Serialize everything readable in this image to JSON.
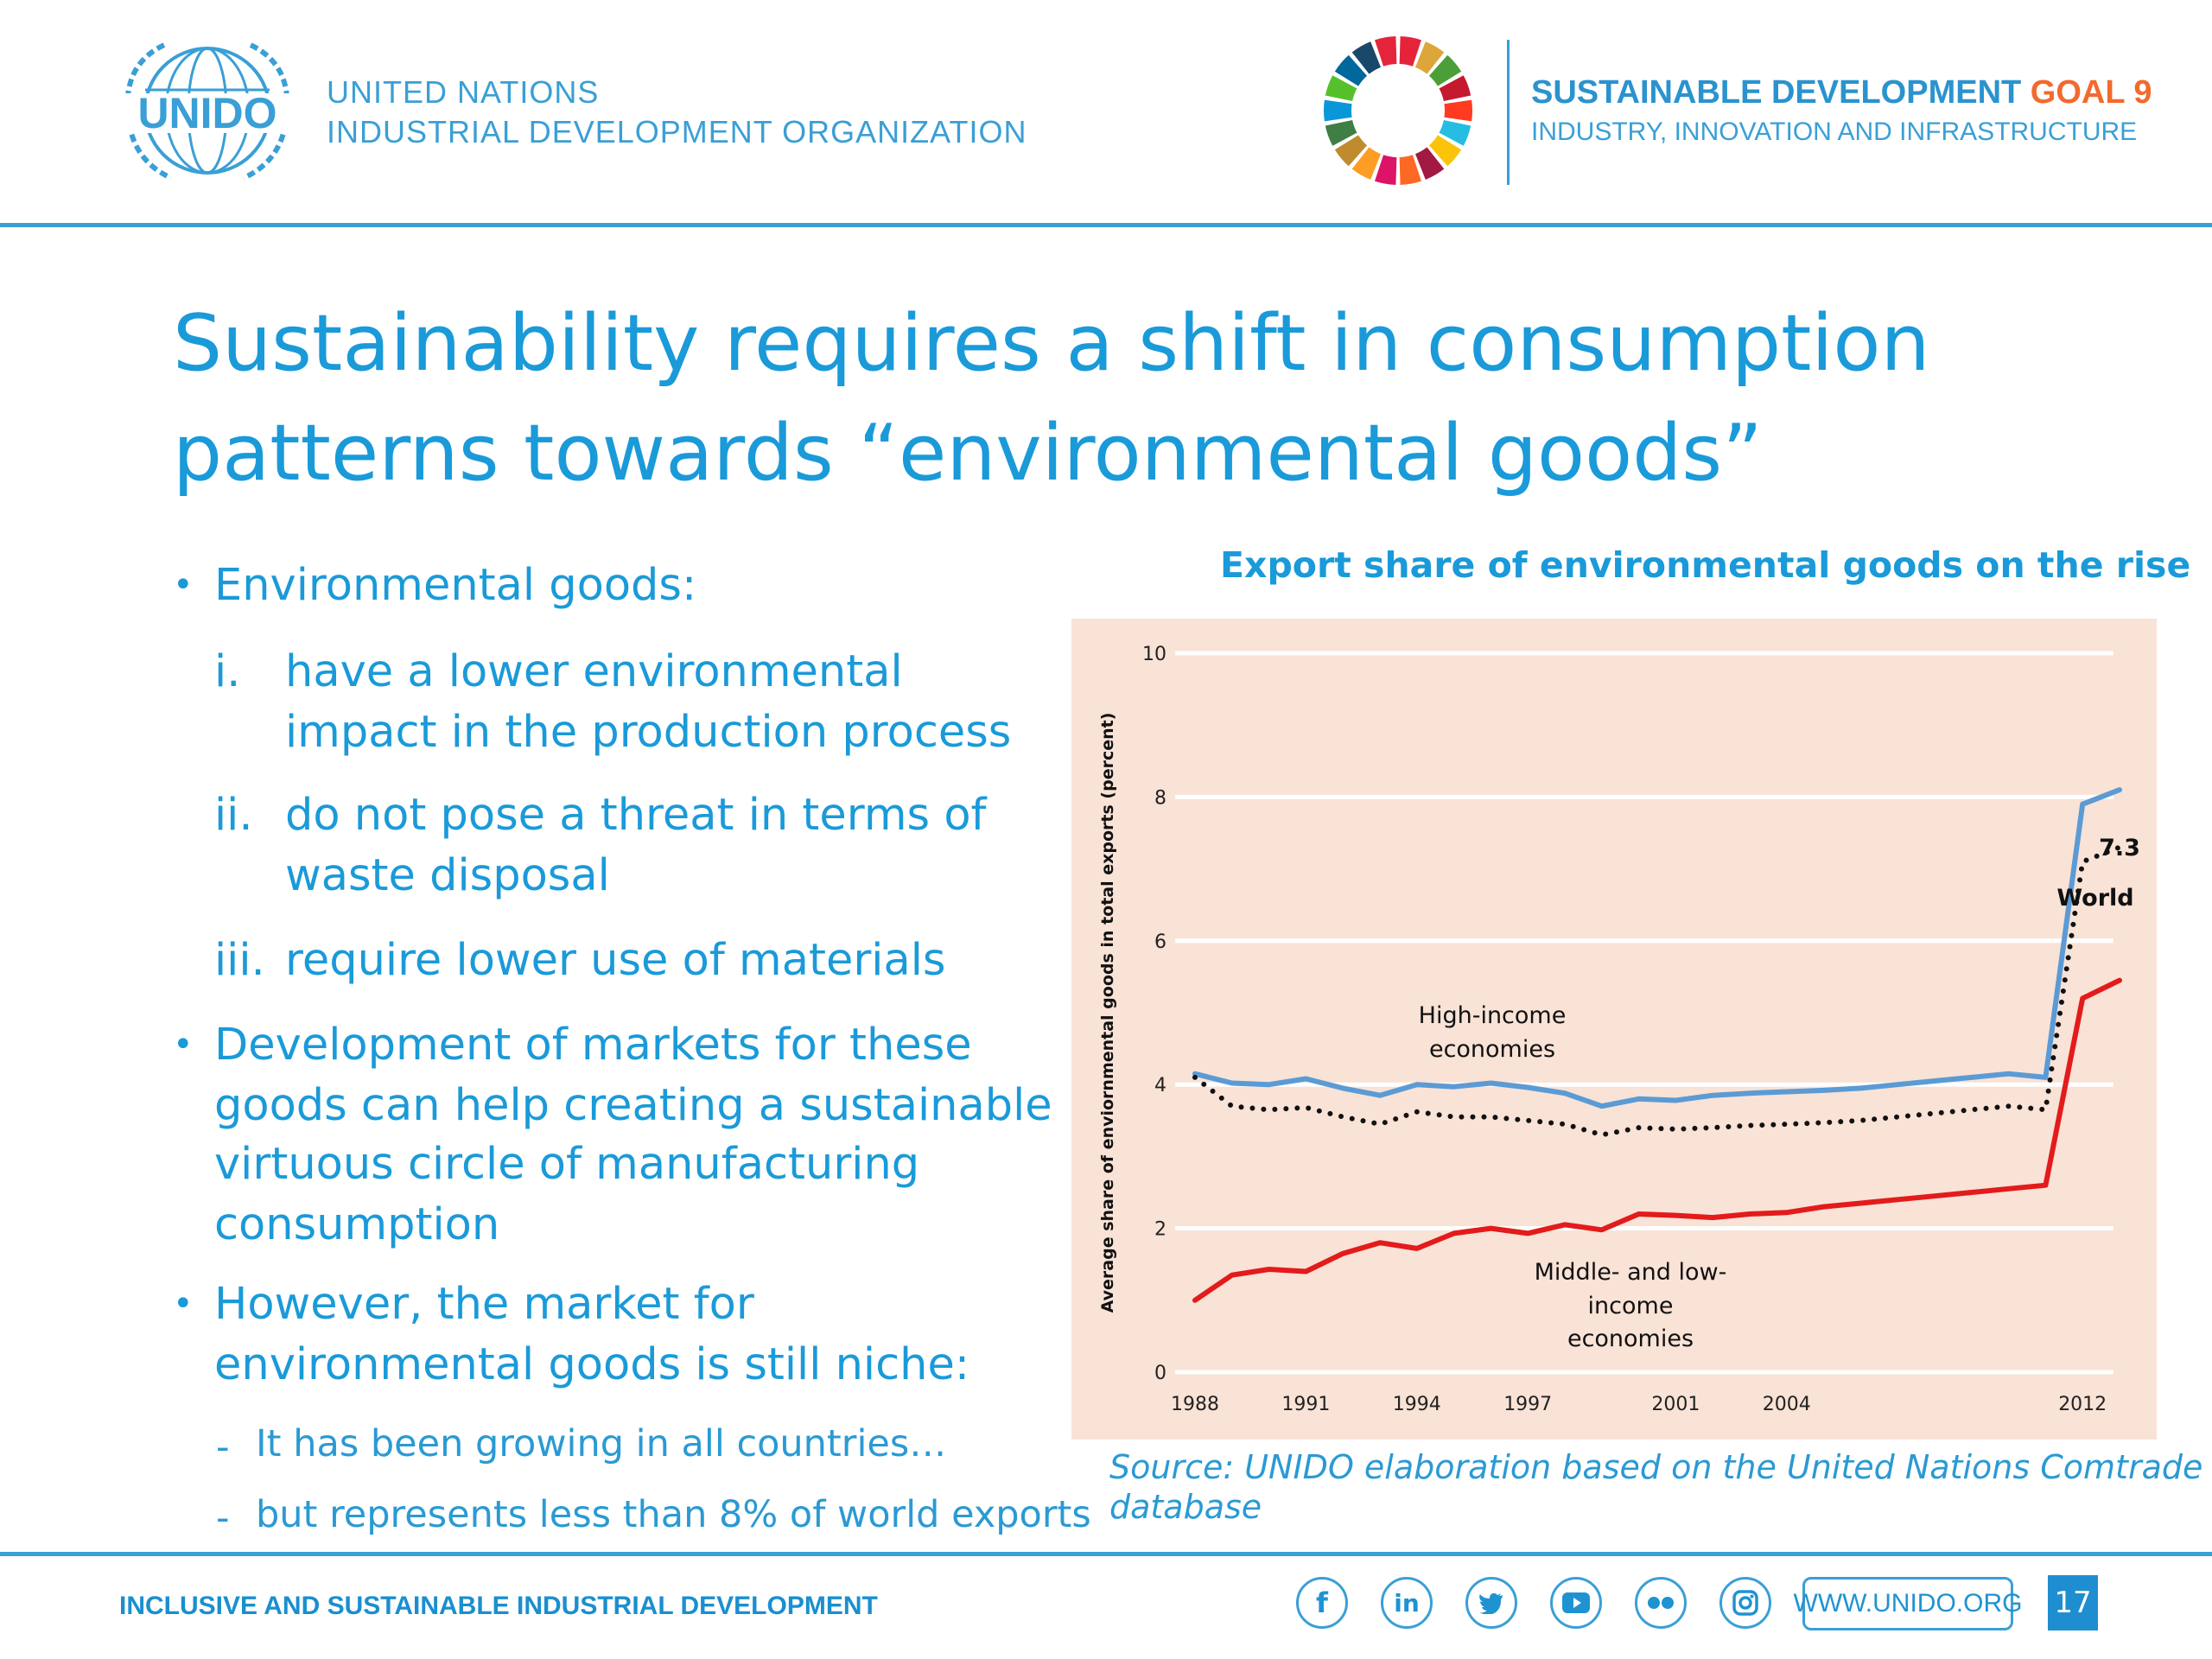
{
  "header": {
    "org_line1": "UNITED NATIONS",
    "org_line2": "INDUSTRIAL DEVELOPMENT ORGANIZATION",
    "emblem_text": "UNIDO",
    "sdg_title_part1": "SUSTAINABLE DEVELOPMENT ",
    "sdg_title_part2": "GOAL 9",
    "sdg_subtitle": "INDUSTRY, INNOVATION AND INFRASTRUCTURE",
    "wheel_colors": [
      "#e5243b",
      "#dda63a",
      "#4c9f38",
      "#c5192d",
      "#ff3a21",
      "#26bde2",
      "#fcc30b",
      "#a21942",
      "#fd6925",
      "#dd1367",
      "#fd9d24",
      "#bf8b2e",
      "#3f7e44",
      "#0a97d9",
      "#56c02b",
      "#00689d",
      "#19486a",
      "#e5243b"
    ]
  },
  "slide": {
    "title_line1": "Sustainability requires a shift in consumption",
    "title_line2": "patterns towards “environmental goods”",
    "bullets": {
      "b1": "Environmental goods:",
      "i_marker": "i.",
      "i_line1": "have a lower environmental",
      "i_line2": "impact in the production process",
      "ii_marker": "ii.",
      "ii_line1": "do not pose a threat in terms of",
      "ii_line2": "waste disposal",
      "iii_marker": "iii.",
      "iii_line1": "require lower use of materials",
      "b2_line1": "Development of markets for these",
      "b2_line2": "goods can help creating a sustainable",
      "b2_line3": "virtuous circle of manufacturing",
      "b2_line4": "consumption",
      "b3_line1": "However, the market for",
      "b3_line2": "environmental goods is still niche:",
      "s1": "It has been growing in all countries…",
      "s2": "but represents less than 8% of world exports",
      "bullet_char": "•",
      "dash_char": "-"
    }
  },
  "chart_data": {
    "type": "line",
    "title": "Export share of environmental goods on the rise",
    "ylabel": "Average share of enviornmental goods in total exports (percent)",
    "xlabel": "",
    "ylim": [
      0,
      10
    ],
    "yticks": [
      "0",
      "2",
      "4",
      "6",
      "8",
      "10"
    ],
    "xlim": [
      1988,
      2013
    ],
    "xticks": [
      "1988",
      "1991",
      "1994",
      "1997",
      "2001",
      "2004",
      "2012"
    ],
    "grid": true,
    "background": "#f9e2d6",
    "x": [
      1988,
      1989,
      1990,
      1991,
      1992,
      1993,
      1994,
      1995,
      1996,
      1997,
      1998,
      1999,
      2000,
      2001,
      2002,
      2003,
      2004,
      2005,
      2006,
      2007,
      2008,
      2009,
      2010,
      2011,
      2012,
      2013
    ],
    "series": [
      {
        "name": "High-income economies",
        "label_line1": "High-income",
        "label_line2": "economies",
        "color": "#5b9bd5",
        "style": "solid",
        "values": [
          4.15,
          4.02,
          4.0,
          4.08,
          3.95,
          3.85,
          4.0,
          3.97,
          4.02,
          3.96,
          3.88,
          3.7,
          3.8,
          3.78,
          3.85,
          3.88,
          3.9,
          3.92,
          3.95,
          4.0,
          4.05,
          4.1,
          4.15,
          4.1,
          7.9,
          8.1
        ]
      },
      {
        "name": "World",
        "label_line1": "World",
        "color": "#111111",
        "style": "dotted",
        "values": [
          4.1,
          3.7,
          3.65,
          3.68,
          3.55,
          3.45,
          3.62,
          3.55,
          3.55,
          3.5,
          3.45,
          3.3,
          3.4,
          3.38,
          3.4,
          3.43,
          3.45,
          3.47,
          3.5,
          3.55,
          3.6,
          3.65,
          3.7,
          3.65,
          7.1,
          7.3
        ],
        "end_label": "7.3"
      },
      {
        "name": "Middle- and low-income economies",
        "label_line1": "Middle- and low-",
        "label_line2": "income",
        "label_line3": "economies",
        "color": "#e31b1b",
        "style": "solid",
        "values": [
          1.0,
          1.35,
          1.43,
          1.4,
          1.65,
          1.8,
          1.72,
          1.93,
          2.0,
          1.93,
          2.05,
          1.98,
          2.2,
          2.18,
          2.15,
          2.2,
          2.22,
          2.3,
          2.35,
          2.4,
          2.45,
          2.5,
          2.55,
          2.6,
          5.2,
          5.45
        ]
      }
    ],
    "source_line1": "Source: UNIDO elaboration based on the United Nations Comtrade",
    "source_line2": "database"
  },
  "footer": {
    "tagline": "INCLUSIVE AND SUSTAINABLE INDUSTRIAL DEVELOPMENT",
    "website": "WWW.UNIDO.ORG",
    "page_number": "17",
    "social_icons": [
      "facebook-icon",
      "linkedin-icon",
      "twitter-icon",
      "youtube-icon",
      "flickr-icon",
      "instagram-icon"
    ]
  }
}
